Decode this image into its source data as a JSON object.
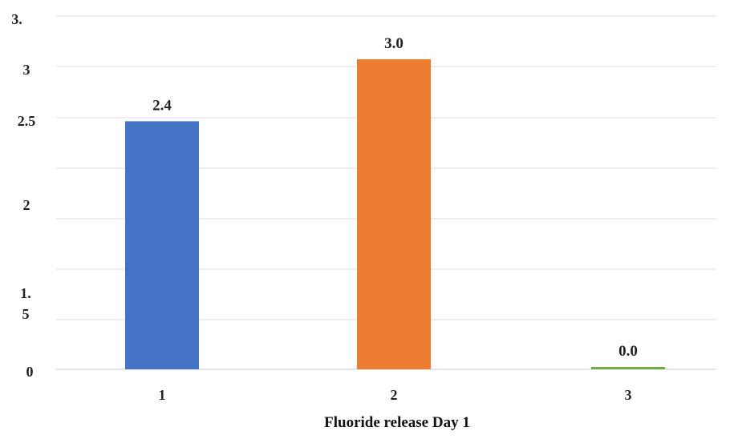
{
  "chart_data": {
    "type": "bar",
    "categories": [
      "1",
      "2",
      "3"
    ],
    "values": [
      2.4,
      3.0,
      0.0
    ],
    "data_labels": [
      "2.4",
      "3.0",
      "0.0"
    ],
    "colors": [
      "#4472C4",
      "#ED7D31",
      "#70AD47"
    ],
    "xlabel": "Fluoride release Day 1",
    "ylabel": "",
    "y_tick_labels": [
      "0",
      "1.\n5",
      "2",
      "2.5",
      "3",
      "3."
    ],
    "grid": true,
    "legend": "none"
  }
}
